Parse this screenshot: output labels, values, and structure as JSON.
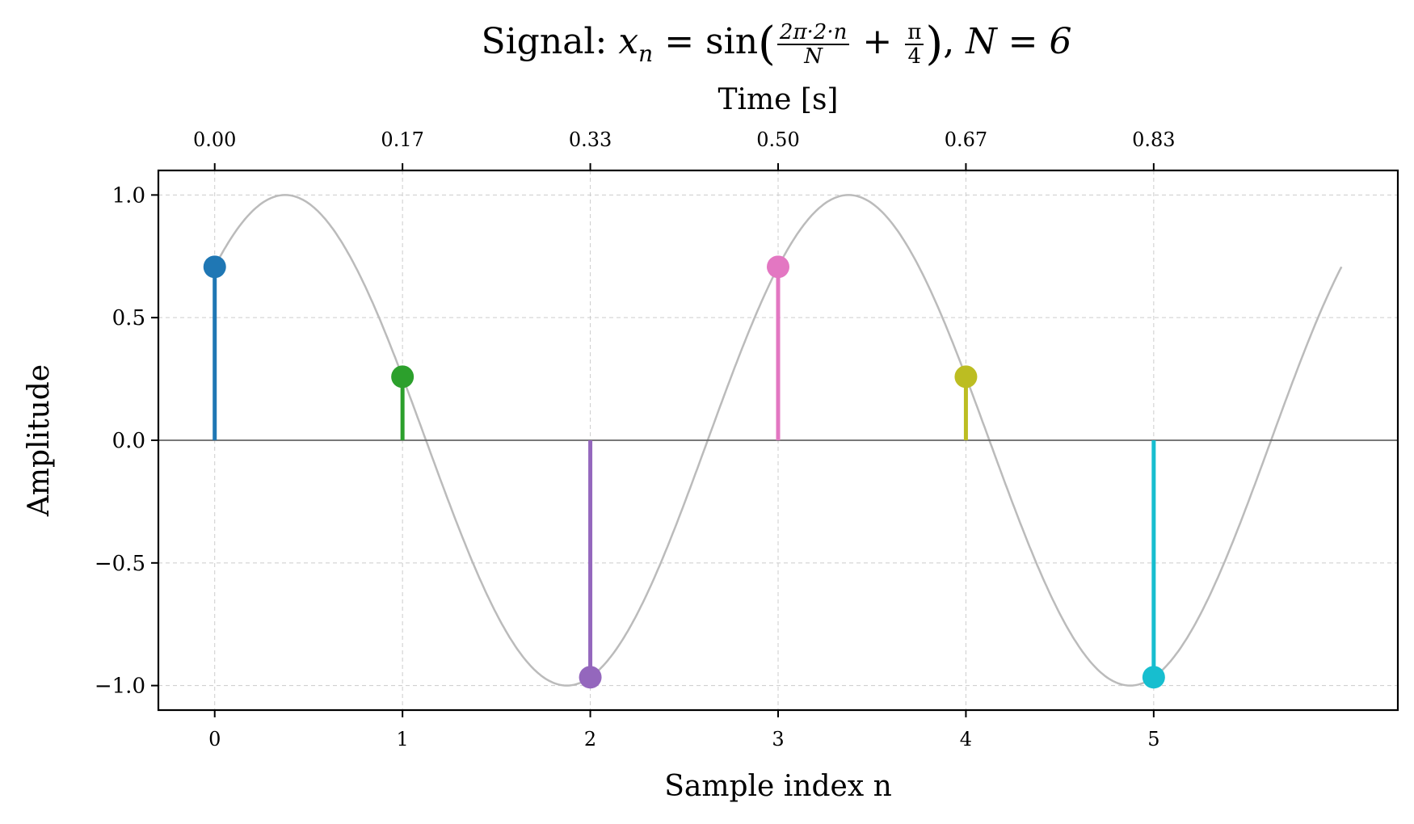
{
  "chart_data": {
    "type": "stem",
    "title": {
      "prefix": "Signal:",
      "lhs": "x",
      "lhs_sub": "n",
      "eq": "= sin",
      "frac1_num": "2π·2·n",
      "frac1_den": "N",
      "plus": "+",
      "frac2_num": "π",
      "frac2_den": "4",
      "suffix": ",",
      "N_label": "N = 6"
    },
    "xlabel": "Sample index n",
    "ylabel": "Amplitude",
    "top_xlabel": "Time [s]",
    "xlim": [
      -0.3,
      6.3
    ],
    "ylim": [
      -1.1,
      1.1
    ],
    "xticks": [
      0,
      1,
      2,
      3,
      4,
      5
    ],
    "xtick_labels": [
      "0",
      "1",
      "2",
      "3",
      "4",
      "5"
    ],
    "top_xtick_labels": [
      "0.00",
      "0.17",
      "0.33",
      "0.50",
      "0.67",
      "0.83"
    ],
    "yticks": [
      -1.0,
      -0.5,
      0.0,
      0.5,
      1.0
    ],
    "ytick_labels": [
      "−1.0",
      "−0.5",
      "0.0",
      "0.5",
      "1.0"
    ],
    "grid": true,
    "samples": {
      "n": [
        0,
        1,
        2,
        3,
        4,
        5
      ],
      "values": [
        0.707,
        0.259,
        -0.966,
        0.707,
        0.259,
        -0.966
      ],
      "colors": [
        "#1f77b4",
        "#2ca02c",
        "#9467bd",
        "#e377c2",
        "#bcbd22",
        "#17becf"
      ]
    },
    "continuous_curve": {
      "formula": "sin(2π·2·t/6 + π/4)",
      "t_range": [
        0,
        6
      ],
      "color": "#bbbbbb"
    },
    "baseline_color": "#666666"
  }
}
